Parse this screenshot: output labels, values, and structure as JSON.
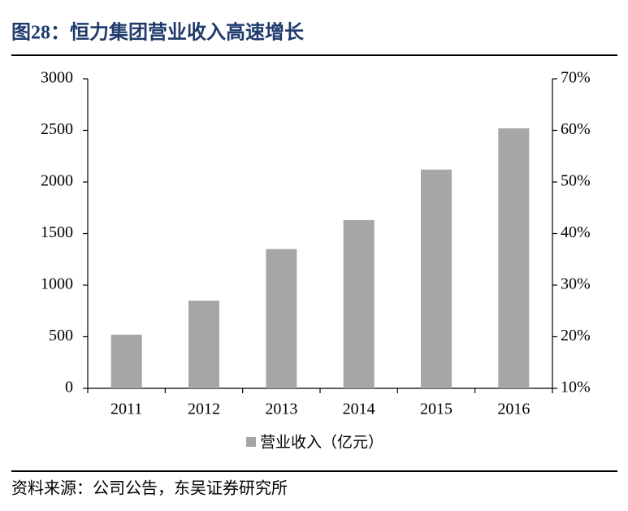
{
  "chart_data": {
    "type": "bar",
    "title": "图28：恒力集团营业收入高速增长",
    "categories": [
      "2011",
      "2012",
      "2013",
      "2014",
      "2015",
      "2016"
    ],
    "series": [
      {
        "name": "营业收入（亿元）",
        "color": "#a6a6a6",
        "values": [
          520,
          850,
          1350,
          1630,
          2120,
          2520
        ]
      }
    ],
    "ylim": [
      0,
      3000
    ],
    "yticks": [
      0,
      500,
      1000,
      1500,
      2000,
      2500,
      3000
    ],
    "y2lim": [
      10,
      70
    ],
    "y2ticks": [
      {
        "value": 10,
        "label": "10%"
      },
      {
        "value": 20,
        "label": "20%"
      },
      {
        "value": 30,
        "label": "30%"
      },
      {
        "value": 40,
        "label": "40%"
      },
      {
        "value": 50,
        "label": "50%"
      },
      {
        "value": 60,
        "label": "60%"
      },
      {
        "value": 70,
        "label": "70%"
      }
    ],
    "legend": "bottom",
    "source": "资料来源：公司公告，东吴证券研究所"
  }
}
